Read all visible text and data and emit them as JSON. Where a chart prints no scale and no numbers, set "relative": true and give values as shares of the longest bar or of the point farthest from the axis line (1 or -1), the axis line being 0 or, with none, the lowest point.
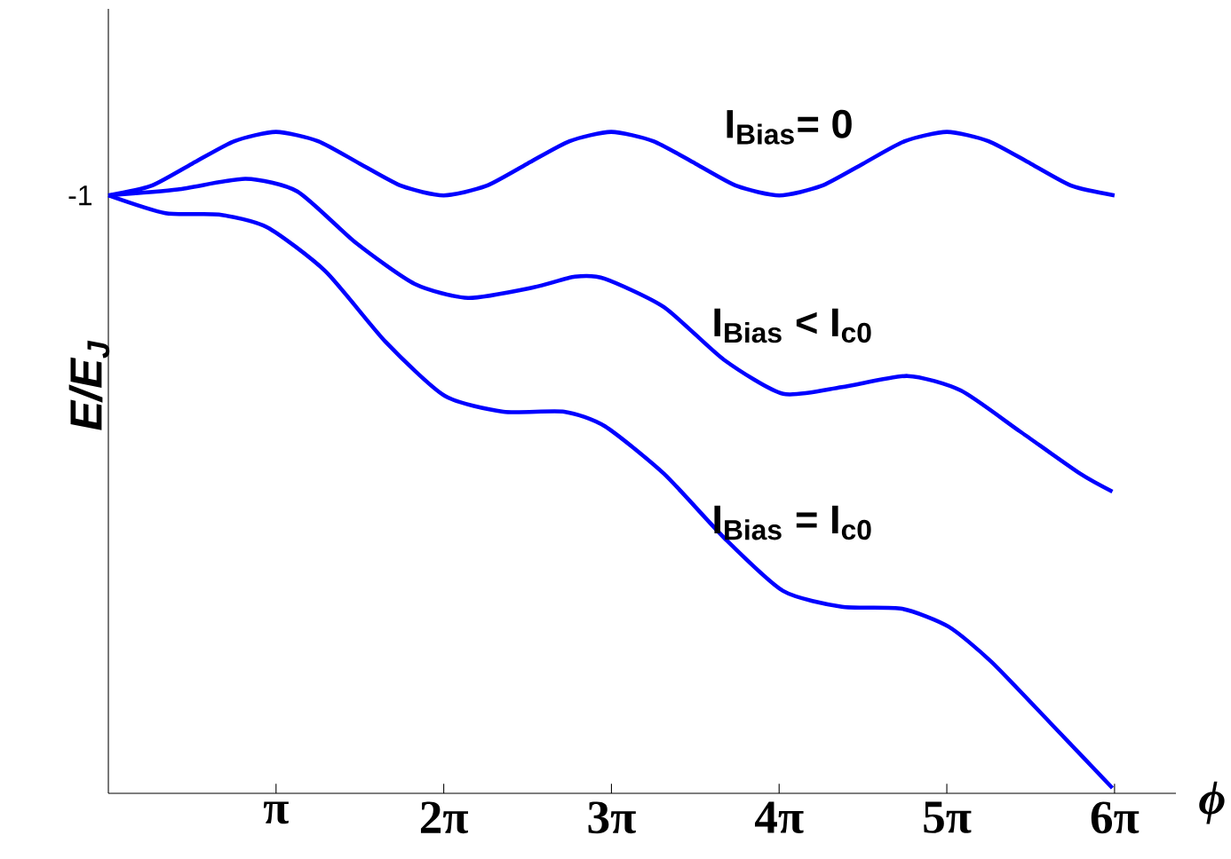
{
  "chart_data": {
    "type": "line",
    "relative": true,
    "xlabel": "ϕ",
    "ylabel": "*E/E$_{J}$*",
    "xlim": [
      0,
      20.0
    ],
    "xticks": [
      {
        "value": 3.1416,
        "label": "π"
      },
      {
        "value": 6.2832,
        "label": "2π"
      },
      {
        "value": 9.4248,
        "label": "3π"
      },
      {
        "value": 12.566,
        "label": "4π"
      },
      {
        "value": 15.708,
        "label": "5π"
      },
      {
        "value": 18.85,
        "label": "6π"
      }
    ],
    "annotations": [
      {
        "text": "-1",
        "x": 0,
        "y": 0.904
      }
    ],
    "line_style": "solid",
    "series": [
      {
        "name": "I$_{Bias}$= 0",
        "color": "#0000ff",
        "x": [
          0,
          0.79,
          1.57,
          2.36,
          3.14,
          3.93,
          4.71,
          5.5,
          6.28,
          7.07,
          7.85,
          8.64,
          9.42,
          10.21,
          11.0,
          11.78,
          12.57,
          13.35,
          14.14,
          14.92,
          15.71,
          16.49,
          17.28,
          18.06,
          18.85
        ],
        "values": [
          0.904,
          0.918,
          0.952,
          0.986,
          1.0,
          0.986,
          0.952,
          0.918,
          0.904,
          0.918,
          0.952,
          0.986,
          1.0,
          0.986,
          0.952,
          0.918,
          0.904,
          0.918,
          0.952,
          0.986,
          1.0,
          0.986,
          0.952,
          0.918,
          0.904
        ]
      },
      {
        "name": "I$_{Bias}$ < I$_{c0}$",
        "color": "#0000ff",
        "x": [
          0,
          1.3,
          2.57,
          3.54,
          4.64,
          5.74,
          6.74,
          7.97,
          8.74,
          9.3,
          10.41,
          11.54,
          12.64,
          13.74,
          14.97,
          15.97,
          17.08,
          18.21,
          18.81
        ],
        "values": [
          0.904,
          0.913,
          0.929,
          0.91,
          0.832,
          0.77,
          0.749,
          0.765,
          0.781,
          0.778,
          0.735,
          0.655,
          0.604,
          0.614,
          0.631,
          0.609,
          0.547,
          0.483,
          0.456
        ]
      },
      {
        "name": "I$_{Bias}$ = I$_{c0}$",
        "color": "#0000ff",
        "x": [
          0,
          1.07,
          2.07,
          2.97,
          4.07,
          5.2,
          6.3,
          7.4,
          8.54,
          9.3,
          10.41,
          11.54,
          12.64,
          13.74,
          14.87,
          15.74,
          16.54,
          17.64,
          18.81
        ],
        "values": [
          0.904,
          0.877,
          0.875,
          0.856,
          0.789,
          0.682,
          0.601,
          0.577,
          0.577,
          0.555,
          0.483,
          0.386,
          0.306,
          0.282,
          0.279,
          0.252,
          0.199,
          0.107,
          0.008
        ]
      }
    ]
  }
}
